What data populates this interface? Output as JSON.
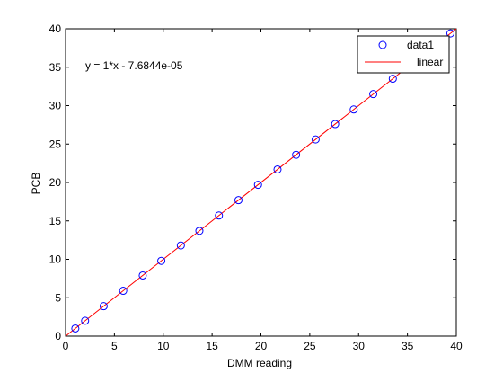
{
  "chart_data": {
    "type": "scatter",
    "title": "",
    "xlabel": "DMM reading",
    "ylabel": "PCB",
    "xlim": [
      0,
      40
    ],
    "ylim": [
      0,
      40
    ],
    "xticks": [
      0,
      5,
      10,
      15,
      20,
      25,
      30,
      35,
      40
    ],
    "yticks": [
      0,
      5,
      10,
      15,
      20,
      25,
      30,
      35,
      40
    ],
    "grid": false,
    "legend_position": "top-right",
    "annotation": "y = 1*x - 7.6844e-05",
    "series": [
      {
        "name": "data1",
        "kind": "scatter",
        "marker": "circle",
        "color": "#0000ff",
        "x": [
          1.0,
          2.0,
          3.9,
          5.9,
          7.9,
          9.8,
          11.8,
          13.7,
          15.7,
          17.7,
          19.7,
          21.7,
          23.6,
          25.6,
          27.6,
          29.5,
          31.5,
          33.5,
          39.4
        ],
        "y": [
          1.0,
          2.0,
          3.9,
          5.9,
          7.9,
          9.8,
          11.8,
          13.7,
          15.7,
          17.7,
          19.7,
          21.7,
          23.6,
          25.6,
          27.6,
          29.5,
          31.5,
          33.5,
          39.4
        ]
      },
      {
        "name": "linear",
        "kind": "line",
        "color": "#ff0000",
        "x": [
          0,
          40
        ],
        "y": [
          -7.68e-05,
          39.9999232
        ]
      }
    ]
  }
}
